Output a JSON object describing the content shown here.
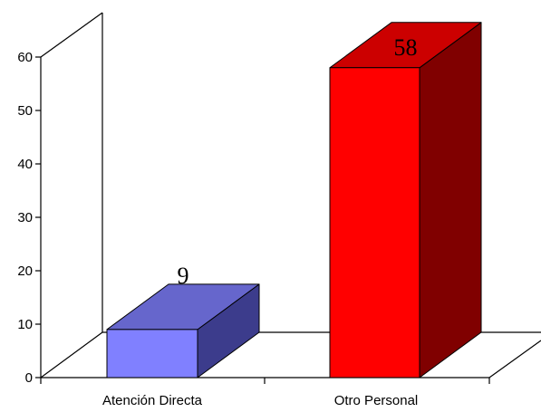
{
  "chart_data": {
    "type": "bar",
    "categories": [
      "Atención Directa",
      "Otro Personal"
    ],
    "values": [
      9,
      58
    ],
    "data_labels": [
      "9",
      "58"
    ],
    "title": "",
    "xlabel": "",
    "ylabel": "",
    "ylim": [
      0,
      60
    ],
    "yticks": [
      "0",
      "10",
      "20",
      "30",
      "40",
      "50",
      "60"
    ],
    "three_d": true,
    "grid": false,
    "legend": "none",
    "colors": {
      "bar1_front": "#8080ff",
      "bar1_top": "#6666cc",
      "bar1_side": "#3c3c8c",
      "bar2_front": "#ff0000",
      "bar2_top": "#cc0000",
      "bar2_side": "#800000"
    }
  }
}
